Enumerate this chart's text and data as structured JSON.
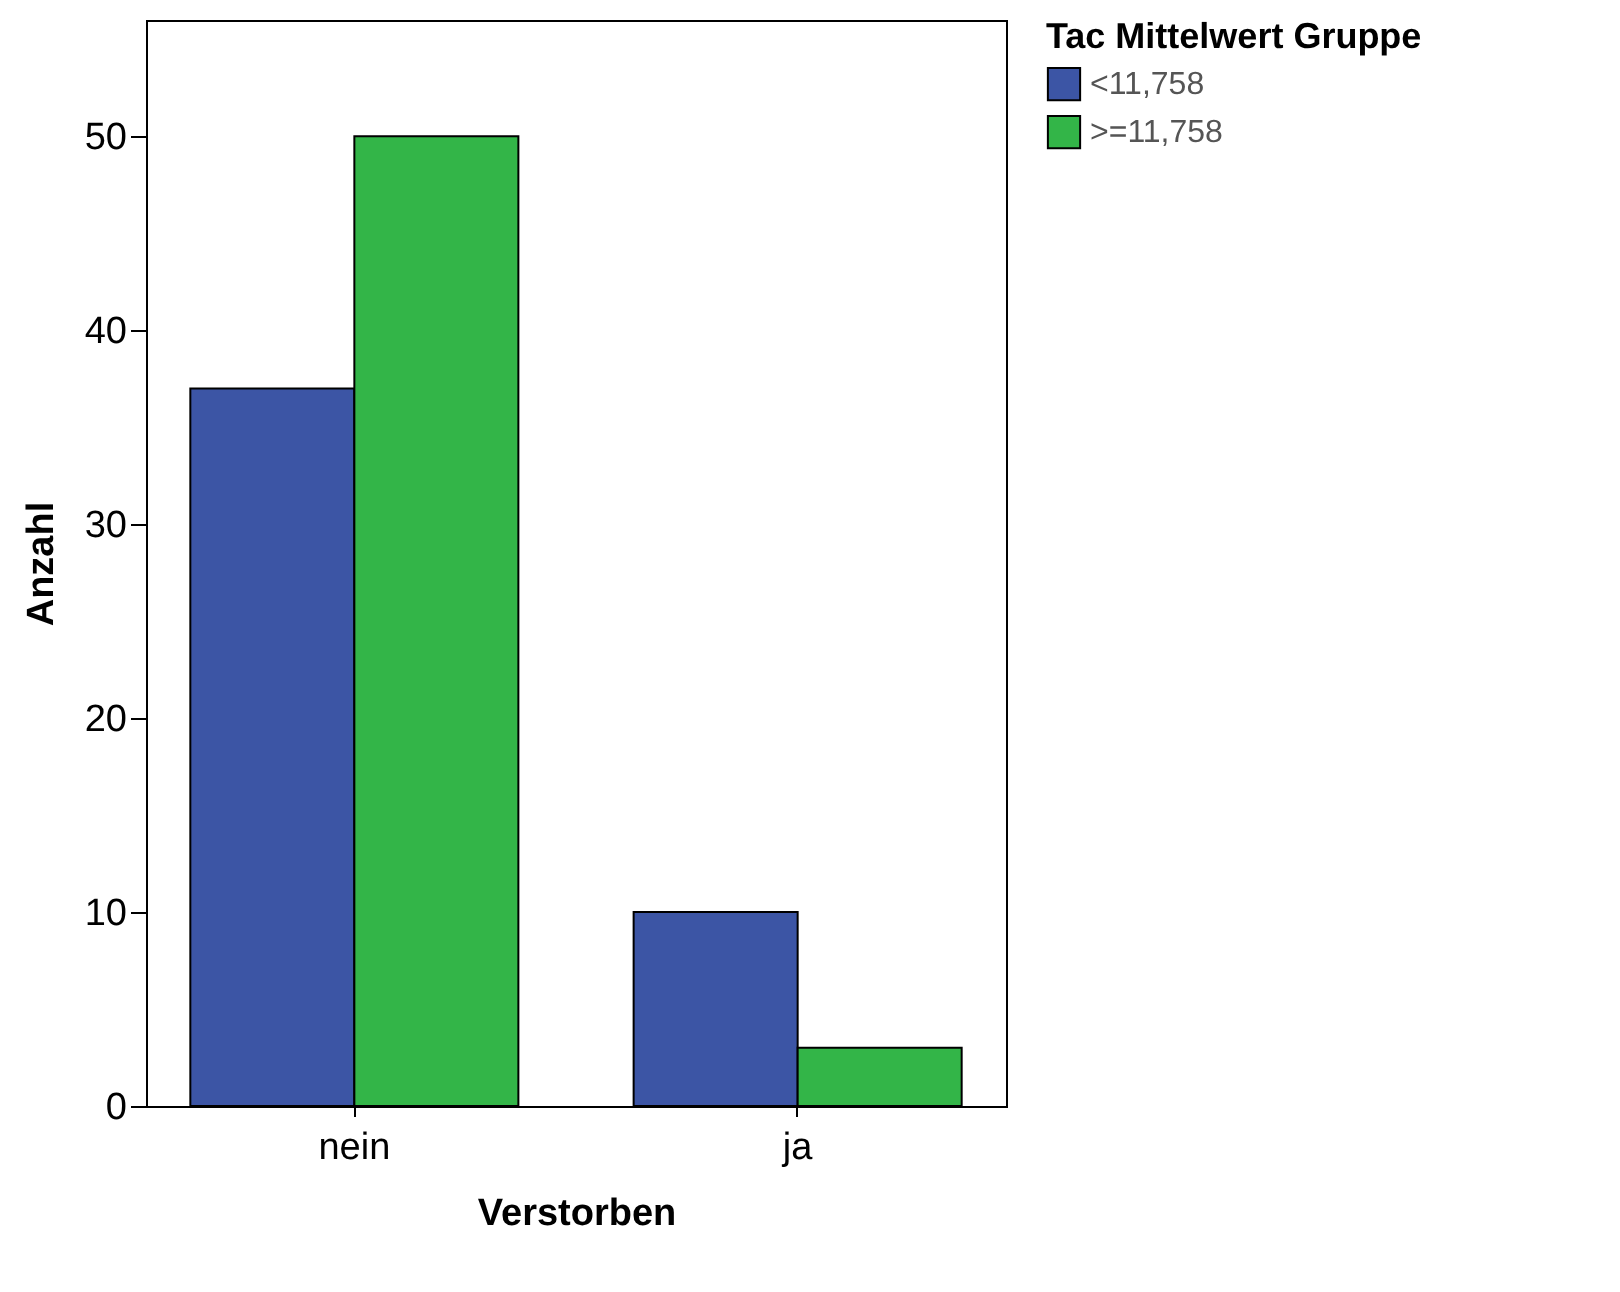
{
  "chart_data": {
    "type": "bar",
    "xlabel": "Verstorben",
    "ylabel": "Anzahl",
    "legend_title": "Tac Mittelwert Gruppe",
    "legend": "top right",
    "categories": [
      "nein",
      "ja"
    ],
    "series": [
      {
        "name": "<11,758",
        "color": "#3c55a5",
        "values": [
          37,
          10
        ]
      },
      {
        "name": ">=11,758",
        "color": "#33b548",
        "values": [
          50,
          3
        ]
      }
    ],
    "ylim": [
      0,
      56
    ],
    "yticks": [
      0,
      10,
      20,
      30,
      40,
      50
    ]
  }
}
